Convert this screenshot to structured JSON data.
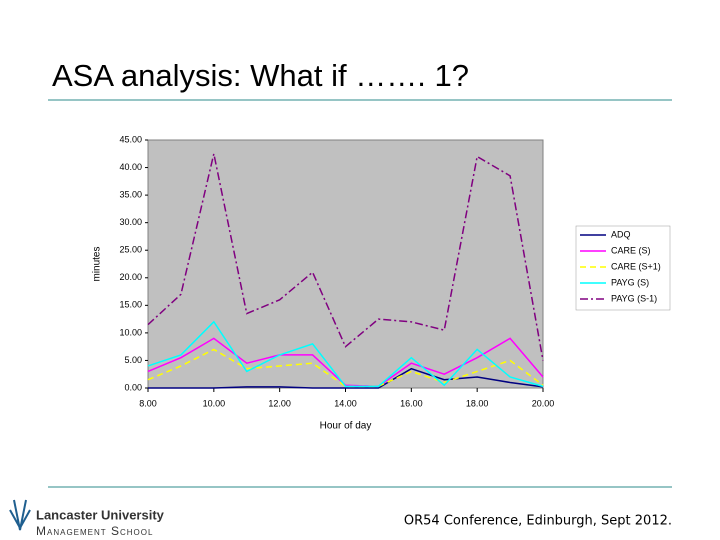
{
  "slide": {
    "title": "ASA analysis: What if ……. 1?",
    "footer": "OR54 Conference, Edinburgh, Sept 2012.",
    "logo": {
      "name": "Lancaster University",
      "school": "Management School"
    }
  },
  "chart_data": {
    "type": "line",
    "xlabel": "Hour of day",
    "ylabel": "minutes",
    "x": [
      8,
      9,
      10,
      11,
      12,
      13,
      14,
      15,
      16,
      17,
      18,
      19,
      20
    ],
    "xlim": [
      8,
      20
    ],
    "xticks": [
      {
        "value": 8,
        "label": "8.00"
      },
      {
        "value": 10,
        "label": "10.00"
      },
      {
        "value": 12,
        "label": "12.00"
      },
      {
        "value": 14,
        "label": "14.00"
      },
      {
        "value": 16,
        "label": "16.00"
      },
      {
        "value": 18,
        "label": "18.00"
      },
      {
        "value": 20,
        "label": "20.00"
      }
    ],
    "ylim": [
      0,
      45
    ],
    "yticks": [
      {
        "value": 0,
        "label": "0.00"
      },
      {
        "value": 5,
        "label": "5.00"
      },
      {
        "value": 10,
        "label": "10.00"
      },
      {
        "value": 15,
        "label": "15.00"
      },
      {
        "value": 20,
        "label": "20.00"
      },
      {
        "value": 25,
        "label": "25.00"
      },
      {
        "value": 30,
        "label": "30.00"
      },
      {
        "value": 35,
        "label": "35.00"
      },
      {
        "value": 40,
        "label": "40.00"
      },
      {
        "value": 45,
        "label": "45.00"
      }
    ],
    "grid": false,
    "legend": "right",
    "plot_background": "#c0c0c0",
    "series": [
      {
        "name": "ADQ",
        "color": "#000080",
        "dash": "solid",
        "values": [
          0,
          0,
          0,
          0.2,
          0.2,
          0,
          0,
          0,
          3.5,
          1.5,
          2,
          1,
          0.2
        ]
      },
      {
        "name": "CARE (S)",
        "color": "#ff00ff",
        "dash": "solid",
        "values": [
          3,
          5.5,
          9,
          4.5,
          6,
          6,
          0.5,
          0.3,
          4.5,
          2.5,
          5.5,
          9,
          2
        ]
      },
      {
        "name": "CARE (S+1)",
        "color": "#ffff00",
        "dash": "dashed",
        "values": [
          1.5,
          4,
          7,
          3.5,
          4,
          4.5,
          0.3,
          0.3,
          3,
          1,
          3,
          5,
          0.5
        ]
      },
      {
        "name": "PAYG (S)",
        "color": "#00ffff",
        "dash": "solid",
        "values": [
          4,
          6,
          12,
          3,
          6,
          8,
          0.3,
          0.3,
          5.5,
          0.5,
          7,
          2,
          0.3
        ]
      },
      {
        "name": "PAYG (S-1)",
        "color": "#800080",
        "dash": "dashdot",
        "values": [
          11.5,
          17,
          42.5,
          13.5,
          16,
          21,
          7.5,
          12.5,
          12,
          10.5,
          42,
          38.5,
          5
        ]
      }
    ]
  }
}
